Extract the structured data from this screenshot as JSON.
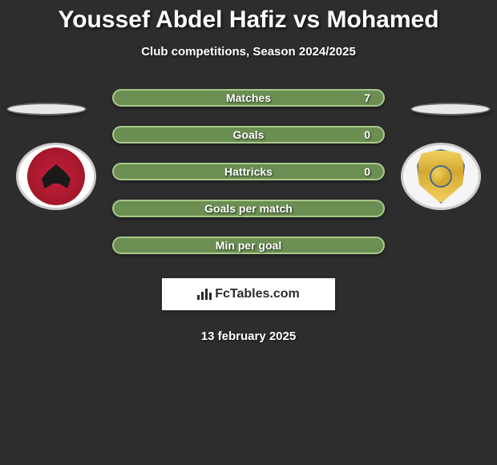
{
  "header": {
    "title": "Youssef Abdel Hafiz vs Mohamed",
    "subtitle": "Club competitions, Season 2024/2025"
  },
  "stats": [
    {
      "label": "Matches",
      "value": "7"
    },
    {
      "label": "Goals",
      "value": "0"
    },
    {
      "label": "Hattricks",
      "value": "0"
    },
    {
      "label": "Goals per match",
      "value": ""
    },
    {
      "label": "Min per goal",
      "value": ""
    }
  ],
  "brand": {
    "name": "FcTables.com"
  },
  "date": "13 february 2025",
  "styling": {
    "background": "#2d2d2d",
    "stat_bar_bg": "#6b8f52",
    "stat_bar_border": "#a8c88a",
    "stat_bar_width": 340,
    "stat_bar_height": 22,
    "stat_bar_radius": 12,
    "title_color": "#ffffff",
    "title_fontsize": 30,
    "subtitle_fontsize": 15,
    "label_fontsize": 14,
    "brand_box_bg": "#ffffff",
    "brand_box_width": 216,
    "brand_box_height": 40,
    "marker_bg": "#e8e8e8",
    "marker_border": "#666",
    "left_badge_primary": "#c41e3a",
    "right_badge_primary": "#f0d060",
    "right_badge_accent": "#5a7a9a"
  }
}
